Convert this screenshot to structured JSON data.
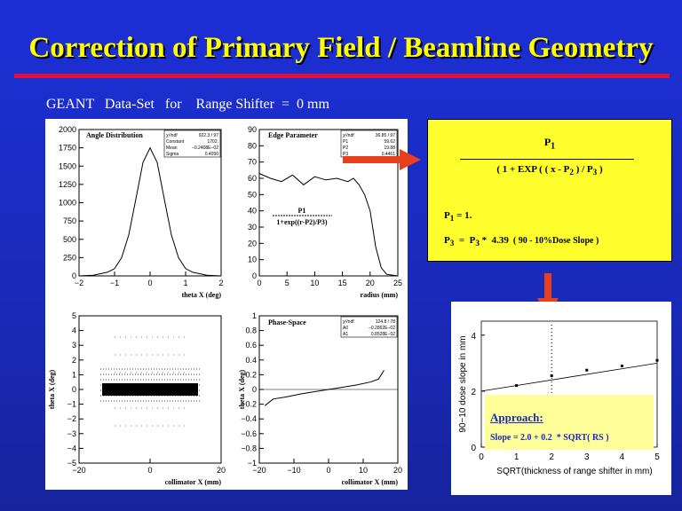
{
  "slide": {
    "title": "Correction of Primary Field  / Beamline Geometry",
    "subtitle": "GEANT   Data-Set   for    Range Shifter  =  0 mm"
  },
  "colors": {
    "background": "#1a2ab8",
    "title": "#ffff00",
    "rule": "#e0103a",
    "formula_box": "#ffff2e",
    "approach_box": "#ffff9a",
    "arrow": "#e8401c"
  },
  "plots": {
    "angle": {
      "label": "Angle Distribution",
      "xlabel": "theta X (deg)",
      "xticks": [
        "−2",
        "−1",
        "0",
        "1",
        "2"
      ],
      "yticks": [
        "0",
        "250",
        "500",
        "750",
        "1000",
        "1250",
        "1500",
        "1750",
        "2000"
      ],
      "stats": [
        [
          "χ²/ndf",
          "922.3  /   97"
        ],
        [
          "Constant",
          "1702."
        ],
        [
          "Mean",
          "−0.2408E−02"
        ],
        [
          "Sigma",
          "0.4090"
        ]
      ]
    },
    "edge": {
      "label": "Edge Parameter",
      "xlabel": "radius (mm)",
      "xticks": [
        "0",
        "5",
        "10",
        "15",
        "20",
        "25"
      ],
      "yticks": [
        "0",
        "10",
        "20",
        "30",
        "40",
        "50",
        "60",
        "70",
        "80",
        "90"
      ],
      "stats": [
        [
          "χ²/ndf",
          "36.85  /   97"
        ],
        [
          "P1",
          "59.62"
        ],
        [
          "P2",
          "19.88"
        ],
        [
          "P3",
          "0.4461"
        ]
      ],
      "formula_num": "P1",
      "formula_den": "1+exp((r-P2)/P3)"
    },
    "scatter": {
      "ylabel": "theta X (deg)",
      "xlabel": "collimator X (mm)",
      "xticks": [
        "−20",
        "0",
        "20"
      ],
      "yticks": [
        "5",
        "4",
        "3",
        "2",
        "1",
        "0",
        "−1",
        "−2",
        "−3",
        "−4",
        "−5"
      ]
    },
    "phase": {
      "label": "Phase-Space",
      "ylabel": "theta X (deg)",
      "xlabel": "collimator X (mm)",
      "xticks": [
        "−20",
        "−10",
        "0",
        "10",
        "20"
      ],
      "yticks": [
        "1",
        "0.8",
        "0.6",
        "0.4",
        "0.2",
        "0",
        "−0.2",
        "−0.4",
        "−0.6",
        "−0.8",
        "−1"
      ],
      "stats": [
        [
          "χ²/ndf",
          "124.8  /   78"
        ],
        [
          "A0",
          "−0.2862E−02"
        ],
        [
          "A1",
          "0.8528E−02"
        ]
      ]
    }
  },
  "formula": {
    "numerator": "P",
    "numerator_sub": "1",
    "den_a": "( 1 + EXP ( ( x  -  P",
    "den_sub_a": "2",
    "den_b": " ) / P",
    "den_sub_b": "3",
    "den_c": " )",
    "line1_a": "P",
    "line1_sub": "1",
    "line1_b": "  = 1.",
    "line2_a": "P",
    "line2_sub_a": "3",
    "line2_b": "  =  P",
    "line2_sub_b": "3",
    "line2_c": " *  4.39",
    "line2_d": "  ( 90 - 10%Dose Slope )"
  },
  "approach": {
    "label": "Approach:",
    "formula": "Slope = 2.0 + 0.2  * SQRT( RS )",
    "ylabel": "90−10 dose slope in mm",
    "xlabel": "SQRT(thickness of range shifter in mm)",
    "xticks": [
      "0",
      "1",
      "2",
      "3",
      "4",
      "5"
    ],
    "yticks": [
      "0",
      "2",
      "4"
    ],
    "chart_data": {
      "type": "scatter",
      "x": [
        1,
        2,
        3,
        4,
        5
      ],
      "y": [
        2.2,
        2.55,
        2.75,
        2.9,
        3.1
      ],
      "fit": {
        "intercept": 2.0,
        "slope": 0.2
      },
      "xlim": [
        0,
        5
      ],
      "ylim": [
        0,
        4.5
      ]
    }
  },
  "chart_data": [
    {
      "type": "line",
      "name_label": "Angle Distribution",
      "xlim": [
        -2,
        2
      ],
      "ylim": [
        0,
        2000
      ],
      "x": [
        -2,
        -1.6,
        -1.2,
        -1,
        -0.8,
        -0.6,
        -0.4,
        -0.2,
        0,
        0.2,
        0.4,
        0.6,
        0.8,
        1,
        1.2,
        1.6,
        2
      ],
      "y": [
        0,
        10,
        50,
        100,
        250,
        560,
        1050,
        1550,
        1750,
        1550,
        1050,
        560,
        250,
        100,
        50,
        10,
        0
      ]
    },
    {
      "type": "line",
      "name_label": "Edge Parameter",
      "xlim": [
        0,
        25
      ],
      "ylim": [
        0,
        90
      ],
      "x": [
        0,
        2,
        4,
        6,
        8,
        10,
        12,
        14,
        16,
        17,
        18,
        19,
        20,
        21,
        22,
        23,
        25
      ],
      "y": [
        63,
        60,
        58,
        62,
        56,
        61,
        59,
        60,
        58,
        60,
        56,
        50,
        40,
        18,
        5,
        1,
        0
      ]
    },
    {
      "type": "line",
      "name_label": "Phase-Space",
      "xlim": [
        -25,
        25
      ],
      "ylim": [
        -1,
        1
      ],
      "x": [
        -23,
        -20,
        -15,
        -10,
        -5,
        0,
        5,
        10,
        15,
        18,
        20
      ],
      "y": [
        -0.22,
        -0.13,
        -0.1,
        -0.06,
        -0.03,
        0.0,
        0.03,
        0.06,
        0.1,
        0.14,
        0.26
      ]
    }
  ]
}
